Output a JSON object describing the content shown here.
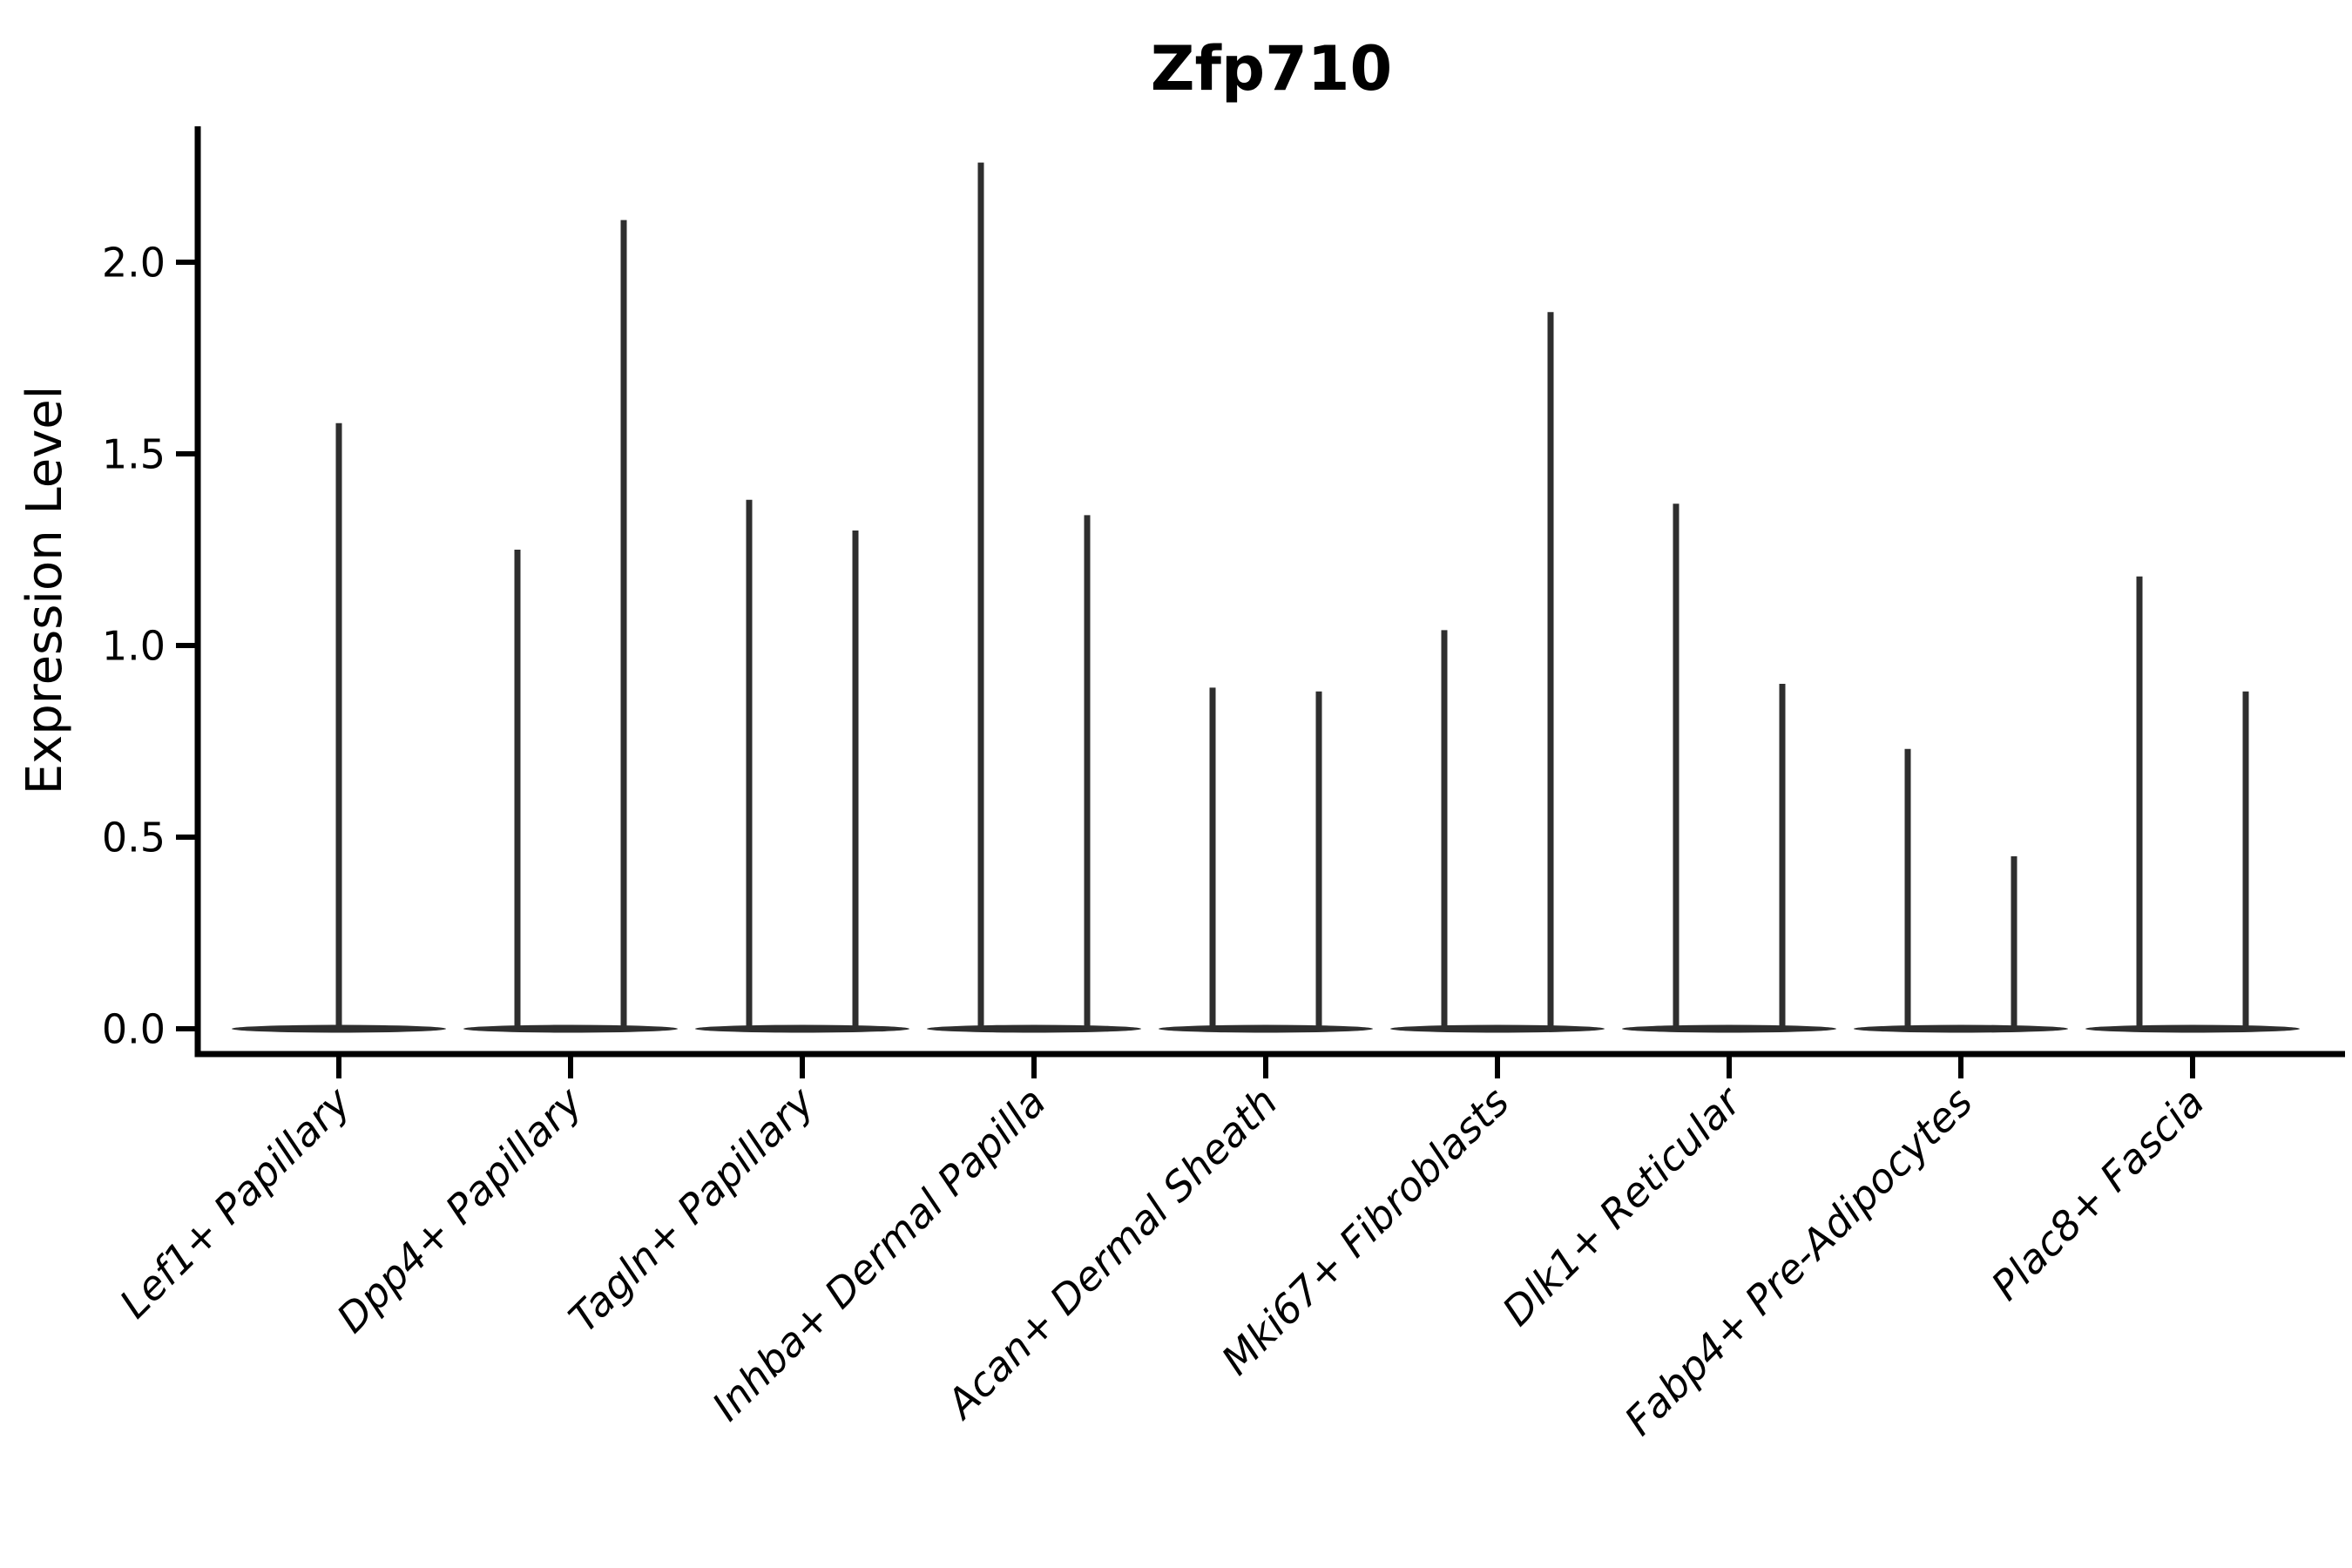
{
  "chart_data": {
    "type": "violin",
    "title": "Zfp710",
    "ylabel": "Expression Level",
    "xlabel": "",
    "y_ticks": [
      "0.0",
      "0.5",
      "1.0",
      "1.5",
      "2.0"
    ],
    "y_tick_values": [
      0.0,
      0.5,
      1.0,
      1.5,
      2.0
    ],
    "ylim": [
      -0.07,
      2.37
    ],
    "grid": false,
    "legend": false,
    "baseline_value": 0.0,
    "series_note": "Each violin is zero-inflated: a wide flat tapered base at expression 0 with a thin vertical tail rising to the maximum expression value. Categories with two tail values contain two side-by-side dodged violins; a single tail value means one full-width centered violin.",
    "categories": [
      "Lef1+ Papillary",
      "Dpp4+ Papillary",
      "Tagln+ Papillary",
      "Inhba+ Dermal Papilla",
      "Acan+ Dermal Sheath",
      "Mki67+ Fibroblasts",
      "Dlk1+ Reticular",
      "Fabp4+ Pre-Adipocytes",
      "Plac8+ Fascia"
    ],
    "violins": [
      {
        "category": "Lef1+ Papillary",
        "tail_max": [
          1.58
        ]
      },
      {
        "category": "Dpp4+ Papillary",
        "tail_max": [
          1.25,
          2.11
        ]
      },
      {
        "category": "Tagln+ Papillary",
        "tail_max": [
          1.38,
          1.3
        ]
      },
      {
        "category": "Inhba+ Dermal Papilla",
        "tail_max": [
          2.26,
          1.34
        ]
      },
      {
        "category": "Acan+ Dermal Sheath",
        "tail_max": [
          0.89,
          0.88
        ]
      },
      {
        "category": "Mki67+ Fibroblasts",
        "tail_max": [
          1.04,
          1.87
        ]
      },
      {
        "category": "Dlk1+ Reticular",
        "tail_max": [
          1.37,
          0.9
        ]
      },
      {
        "category": "Fabp4+ Pre-Adipocytes",
        "tail_max": [
          0.73,
          0.45
        ]
      },
      {
        "category": "Plac8+ Fascia",
        "tail_max": [
          1.18,
          0.88
        ]
      }
    ],
    "colors": {
      "violin": "#2e2e2e",
      "axis": "#000000",
      "text": "#000000",
      "background": "#ffffff"
    }
  }
}
